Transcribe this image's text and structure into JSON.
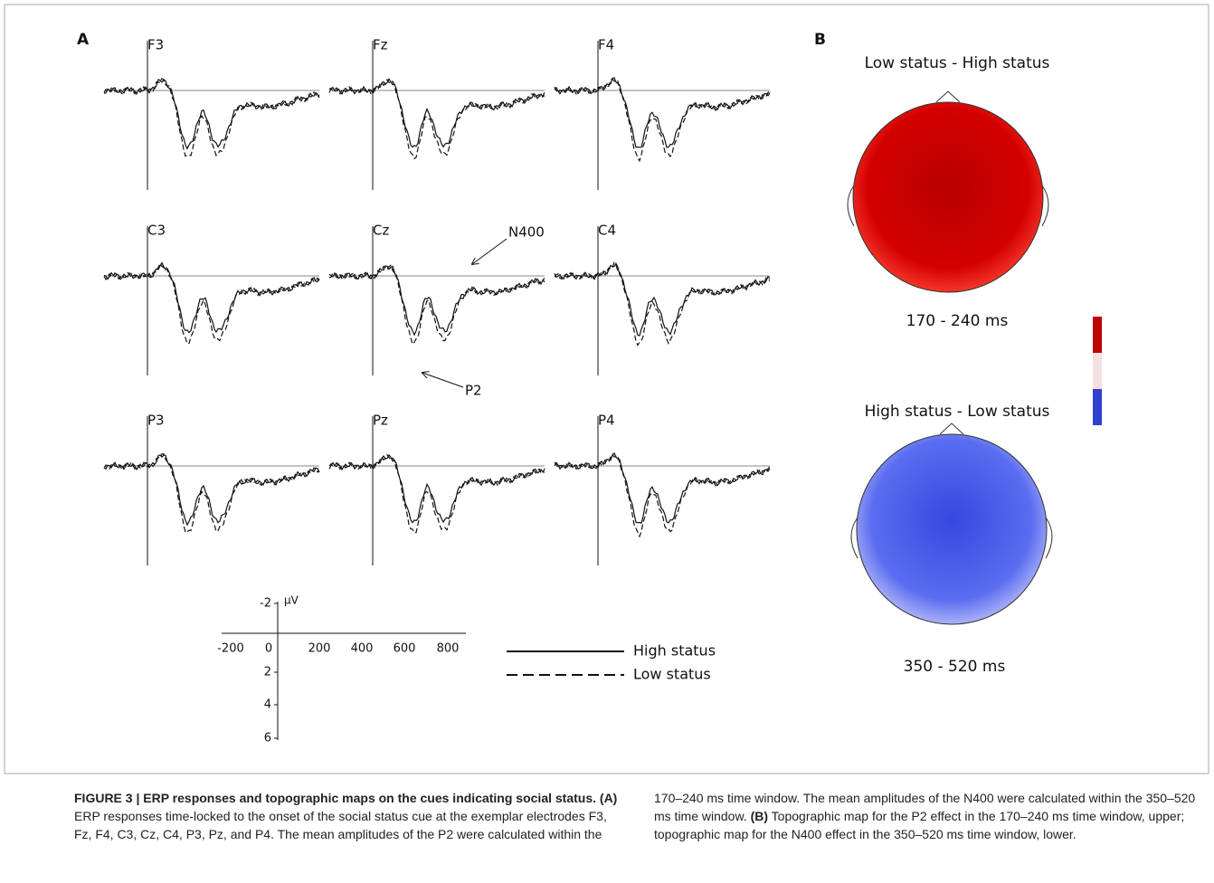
{
  "panel_labels": [
    "A",
    "B"
  ],
  "electrodes": [
    "F3",
    "Fz",
    "F4",
    "C3",
    "Cz",
    "C4",
    "P3",
    "Pz",
    "P4"
  ],
  "annotations": [
    "N400",
    "P2"
  ],
  "scale": {
    "y_unit": "µV",
    "y_labels": [
      "-2",
      "2",
      "4",
      "6"
    ],
    "x_labels": [
      "-200",
      "0",
      "200",
      "400",
      "600",
      "800"
    ]
  },
  "legend": [
    "High status",
    "Low status"
  ],
  "topomaps": [
    {
      "title": "Low status - High status",
      "window": "170 - 240 ms"
    },
    {
      "title": "High status - Low status",
      "window": "350 - 520 ms"
    }
  ],
  "caption": {
    "title": "FIGURE 3 | ERP responses and topographic maps on the cues indicating social status.",
    "parts": [
      {
        "label": "(A)",
        "text": "ERP responses time-locked to the onset of the social status cue at the exemplar electrodes F3, Fz, F4, C3, Cz, C4, P3, Pz, and P4. The mean amplitudes of the P2 were calculated within the 170–240 ms time window. The mean amplitudes of the N400 were calculated within the 350–520 ms time window."
      },
      {
        "label": "(B)",
        "text": "Topographic map for the P2 effect in the 170–240 ms time window, upper; topographic map for the N400 effect in the 350–520 ms time window, lower."
      }
    ]
  }
}
